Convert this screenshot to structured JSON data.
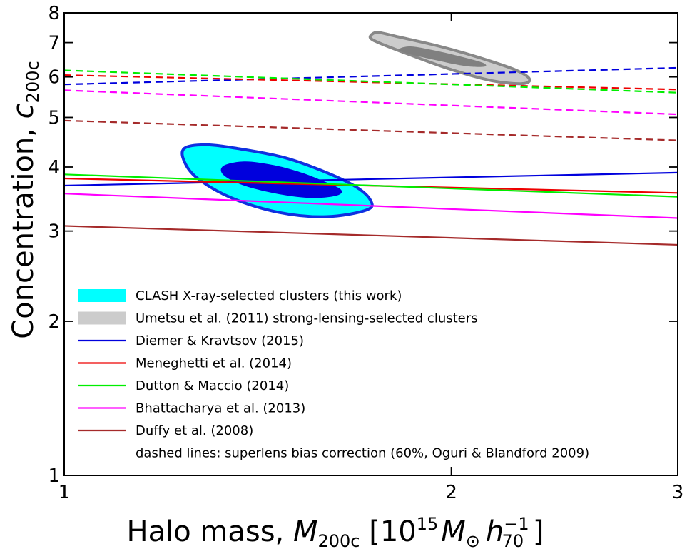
{
  "chart_data": {
    "type": "line",
    "x_scale": "log",
    "y_scale": "log",
    "xlim": [
      1,
      3
    ],
    "ylim": [
      1,
      8
    ],
    "x_ticks": [
      {
        "value": 1,
        "label": "1"
      },
      {
        "value": 2,
        "label": "2"
      },
      {
        "value": 3,
        "label": "3"
      }
    ],
    "y_ticks": [
      {
        "value": 1,
        "label": "1"
      },
      {
        "value": 2,
        "label": "2"
      },
      {
        "value": 3,
        "label": "3"
      },
      {
        "value": 4,
        "label": "4"
      },
      {
        "value": 5,
        "label": "5"
      },
      {
        "value": 6,
        "label": "6"
      },
      {
        "value": 7,
        "label": "7"
      },
      {
        "value": 8,
        "label": "8"
      }
    ],
    "xlabel": {
      "main": "Halo mass, ",
      "sym": "M",
      "sub": "200c",
      "unit_open": " [10",
      "exp": "15",
      "msun": "M",
      "msun_sub": "⊙",
      "h": "h",
      "h_sup": "−1",
      "h_sub": "70",
      "unit_close": " ]"
    },
    "ylabel": {
      "main": "Concentration, ",
      "sym": "c",
      "sub": "200c"
    },
    "legend_position": "lower-left",
    "contours": [
      {
        "name": "CLASH X-ray-selected clusters (this work)",
        "outer_color": "#00ffff",
        "inner_color": "#0000dd",
        "edge_color": "#1030e0",
        "outer": [
          [
            1.29,
            4.42
          ],
          [
            1.37,
            4.34
          ],
          [
            1.48,
            4.18
          ],
          [
            1.58,
            3.95
          ],
          [
            1.68,
            3.68
          ],
          [
            1.73,
            3.45
          ],
          [
            1.72,
            3.3
          ],
          [
            1.6,
            3.2
          ],
          [
            1.47,
            3.26
          ],
          [
            1.35,
            3.48
          ],
          [
            1.27,
            3.8
          ],
          [
            1.24,
            4.1
          ],
          [
            1.24,
            4.35
          ]
        ],
        "inner": [
          [
            1.38,
            4.1
          ],
          [
            1.45,
            4.04
          ],
          [
            1.52,
            3.92
          ],
          [
            1.58,
            3.78
          ],
          [
            1.64,
            3.62
          ],
          [
            1.63,
            3.52
          ],
          [
            1.56,
            3.48
          ],
          [
            1.47,
            3.54
          ],
          [
            1.38,
            3.68
          ],
          [
            1.33,
            3.86
          ],
          [
            1.33,
            4.02
          ]
        ]
      },
      {
        "name": "Umetsu et al. (2011) strong-lensing-selected clusters",
        "outer_color": "#cccccc",
        "inner_color": "#808080",
        "edge_color": "#888888",
        "outer": [
          [
            1.76,
            7.32
          ],
          [
            1.82,
            7.18
          ],
          [
            1.96,
            6.88
          ],
          [
            2.1,
            6.55
          ],
          [
            2.24,
            6.2
          ],
          [
            2.3,
            5.95
          ],
          [
            2.27,
            5.82
          ],
          [
            2.15,
            5.9
          ],
          [
            2.0,
            6.2
          ],
          [
            1.85,
            6.65
          ],
          [
            1.76,
            6.98
          ],
          [
            1.73,
            7.15
          ],
          [
            1.74,
            7.3
          ]
        ],
        "inner": [
          [
            1.86,
            6.88
          ],
          [
            1.95,
            6.74
          ],
          [
            2.05,
            6.54
          ],
          [
            2.12,
            6.38
          ],
          [
            2.12,
            6.28
          ],
          [
            2.05,
            6.3
          ],
          [
            1.95,
            6.46
          ],
          [
            1.86,
            6.64
          ],
          [
            1.82,
            6.78
          ]
        ]
      }
    ],
    "series": [
      {
        "name": "Diemer & Kravtsov (2015)",
        "color": "#0000dd",
        "x": [
          1,
          3
        ],
        "y": [
          3.68,
          3.9
        ],
        "dashed_y": [
          5.8,
          6.25
        ]
      },
      {
        "name": "Meneghetti et al. (2014)",
        "color": "#ee0000",
        "x": [
          1,
          3
        ],
        "y": [
          3.8,
          3.56
        ],
        "dashed_y": [
          6.05,
          5.67
        ]
      },
      {
        "name": "Dutton & Maccio (2014)",
        "color": "#00ee00",
        "x": [
          1,
          3
        ],
        "y": [
          3.87,
          3.5
        ],
        "dashed_y": [
          6.18,
          5.59
        ]
      },
      {
        "name": "Bhattacharya et al. (2013)",
        "color": "#ff00ff",
        "x": [
          1,
          3
        ],
        "y": [
          3.55,
          3.18
        ],
        "dashed_y": [
          5.65,
          5.07
        ]
      },
      {
        "name": "Duffy et al. (2008)",
        "color": "#a52a2a",
        "x": [
          1,
          3
        ],
        "y": [
          3.07,
          2.82
        ],
        "dashed_y": [
          4.93,
          4.51
        ]
      }
    ],
    "legend_note": "dashed lines: superlens bias correction (60%, Oguri & Blandford 2009)"
  }
}
